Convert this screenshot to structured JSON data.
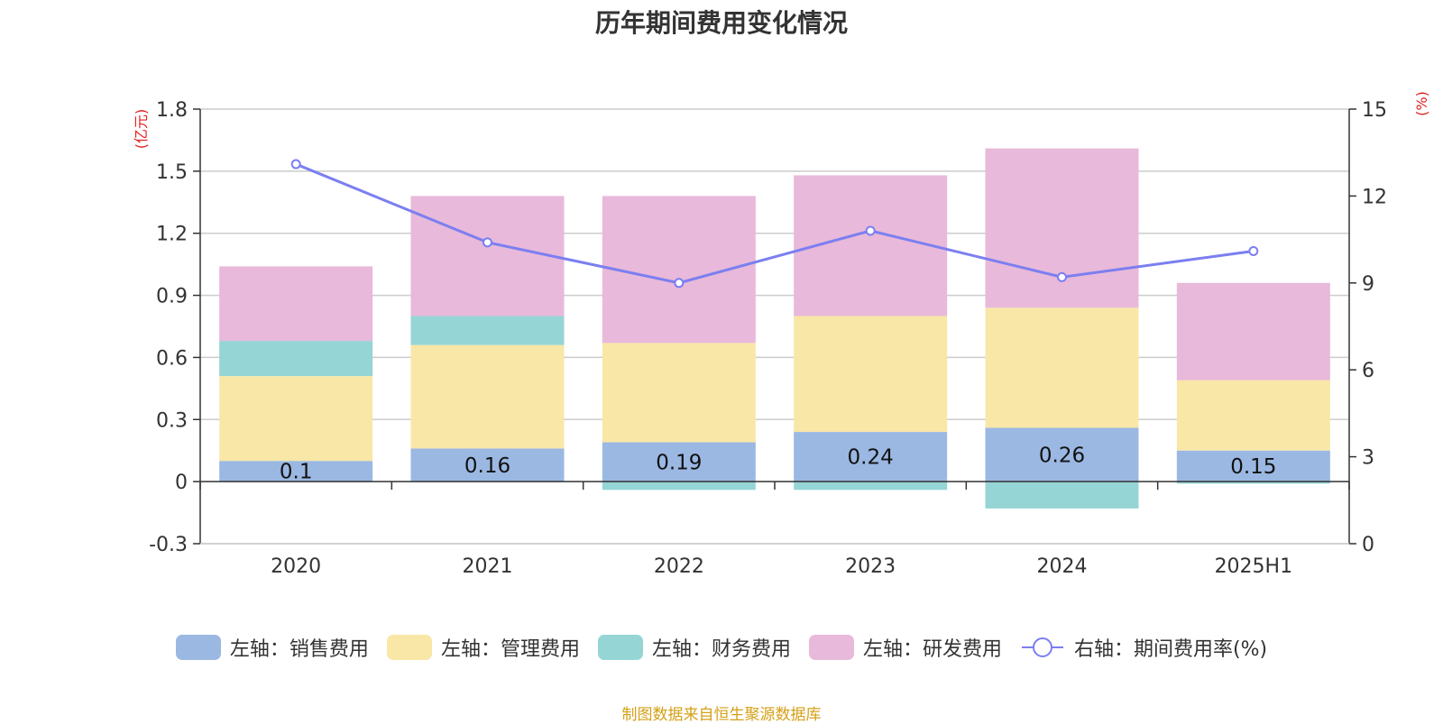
{
  "title": "历年期间费用变化情况",
  "left_axis_unit": "(亿元)",
  "right_axis_unit": "(%)",
  "source": "制图数据来自恒生聚源数据库",
  "legend": [
    {
      "label": "左轴：销售费用",
      "color": "#9bb8e3",
      "kind": "bar"
    },
    {
      "label": "左轴：管理费用",
      "color": "#f8e7a7",
      "kind": "bar"
    },
    {
      "label": "左轴：财务费用",
      "color": "#96d5d5",
      "kind": "bar"
    },
    {
      "label": "左轴：研发费用",
      "color": "#e8b9da",
      "kind": "bar"
    },
    {
      "label": "右轴：期间费用率(%)",
      "color": "#7b7ff0",
      "kind": "line"
    }
  ],
  "chart_data": {
    "type": "bar",
    "stacked": true,
    "categories": [
      "2020",
      "2021",
      "2022",
      "2023",
      "2024",
      "2025H1"
    ],
    "series": [
      {
        "name": "左轴：销售费用",
        "values": [
          0.1,
          0.16,
          0.19,
          0.24,
          0.26,
          0.15
        ],
        "color": "#9bb8e3",
        "axis": "left",
        "labels": [
          "0.1",
          "0.16",
          "0.19",
          "0.24",
          "0.26",
          "0.15"
        ]
      },
      {
        "name": "左轴：管理费用",
        "values": [
          0.41,
          0.5,
          0.48,
          0.56,
          0.58,
          0.34
        ],
        "color": "#f8e7a7",
        "axis": "left"
      },
      {
        "name": "左轴：财务费用",
        "values": [
          0.17,
          0.14,
          -0.04,
          -0.04,
          -0.13,
          -0.01
        ],
        "color": "#96d5d5",
        "axis": "left"
      },
      {
        "name": "左轴：研发费用",
        "values": [
          0.36,
          0.58,
          0.71,
          0.68,
          0.77,
          0.47
        ],
        "color": "#e8b9da",
        "axis": "left"
      },
      {
        "name": "右轴：期间费用率(%)",
        "type": "line",
        "values": [
          13.1,
          10.4,
          9.0,
          10.8,
          9.2,
          10.1
        ],
        "color": "#7b7ff0",
        "axis": "right"
      }
    ],
    "left_axis": {
      "ylim": [
        -0.3,
        1.8
      ],
      "ticks": [
        -0.3,
        0,
        0.3,
        0.6,
        0.9,
        1.2,
        1.5,
        1.8
      ],
      "tick_labels": [
        "-0.3",
        "0",
        "0.3",
        "0.6",
        "0.9",
        "1.2",
        "1.5",
        "1.8"
      ]
    },
    "right_axis": {
      "ylim": [
        0,
        15
      ],
      "ticks": [
        0,
        3,
        6,
        9,
        12,
        15
      ],
      "tick_labels": [
        "0",
        "3",
        "6",
        "9",
        "12",
        "15"
      ]
    },
    "grid": true,
    "legend_position": "bottom"
  }
}
